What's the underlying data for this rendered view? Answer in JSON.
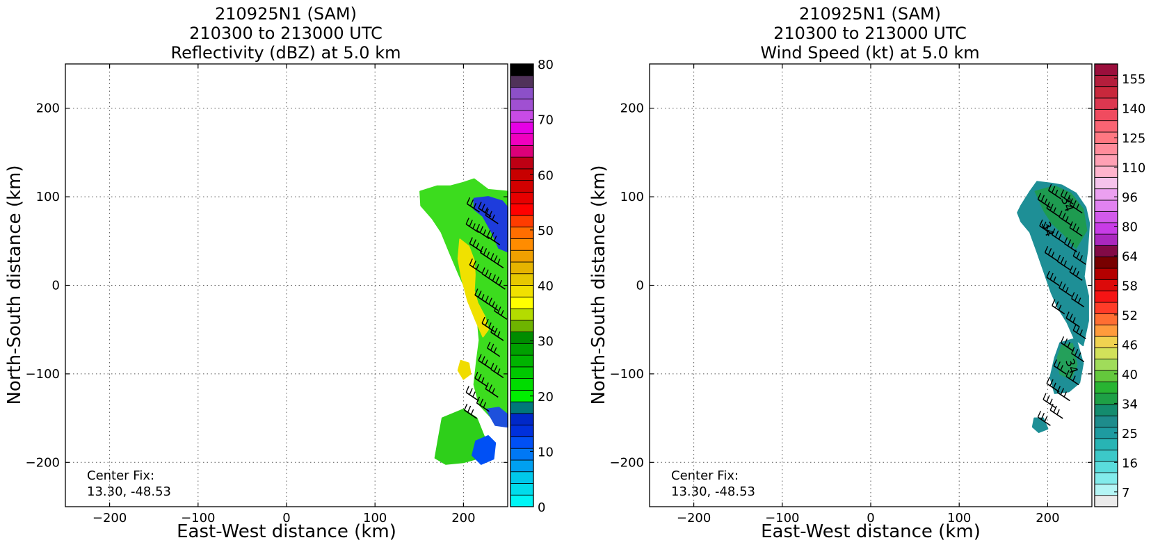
{
  "chart_data": [
    {
      "type": "heatmap",
      "title": [
        "210925N1 (SAM)",
        "210300 to 213000 UTC",
        "Reflectivity (dBZ) at 5.0 km"
      ],
      "xlabel": "East-West distance (km)",
      "ylabel": "North-South distance (km)",
      "xlim": [
        -250,
        250
      ],
      "ylim": [
        -250,
        250
      ],
      "xticks": [
        -200,
        -100,
        0,
        100,
        200
      ],
      "yticks": [
        200,
        100,
        0,
        -100,
        -200
      ],
      "xtick_labels": [
        "−200",
        "−100",
        "0",
        "100",
        "200"
      ],
      "ytick_labels": [
        "200",
        "100",
        "0",
        "−100",
        "−200"
      ],
      "grid": true,
      "annotation": [
        "Center Fix:",
        "13.30, -48.53"
      ],
      "colorbar": {
        "min": 0,
        "max": 80,
        "ticks": [
          0,
          10,
          20,
          30,
          40,
          50,
          60,
          70,
          80
        ],
        "tick_labels": [
          "0",
          "10",
          "20",
          "30",
          "40",
          "50",
          "60",
          "70",
          "80"
        ],
        "colors": [
          "#00f5f5",
          "#00dceb",
          "#00c8eb",
          "#00a0f0",
          "#0078f5",
          "#0050f5",
          "#0030dc",
          "#0028c8",
          "#00787a",
          "#00f000",
          "#00dc00",
          "#00c800",
          "#00b400",
          "#00a000",
          "#008c00",
          "#6eb400",
          "#b4dc00",
          "#ffff00",
          "#f0e100",
          "#e6c800",
          "#e6b400",
          "#f0a000",
          "#ff8c00",
          "#ff6e00",
          "#ff3c00",
          "#ff0000",
          "#e60000",
          "#d20000",
          "#c80000",
          "#be0014",
          "#dc0078",
          "#f000be",
          "#e600e6",
          "#c84be6",
          "#a050d2",
          "#8c50c8",
          "#50325a",
          "#000000"
        ]
      },
      "echo_regions": [
        {
          "label": "green",
          "color": "#3cdc1e",
          "poly": [
            [
              151,
              106
            ],
            [
              170,
              112
            ],
            [
              185,
              112
            ],
            [
              200,
              116
            ],
            [
              212,
              120
            ],
            [
              228,
              108
            ],
            [
              250,
              106
            ],
            [
              250,
              -150
            ],
            [
              232,
              -150
            ],
            [
              218,
              -135
            ],
            [
              212,
              -112
            ],
            [
              215,
              -85
            ],
            [
              218,
              -62
            ],
            [
              215,
              -30
            ],
            [
              205,
              -10
            ],
            [
              195,
              12
            ],
            [
              184,
              38
            ],
            [
              175,
              60
            ],
            [
              165,
              75
            ],
            [
              152,
              90
            ]
          ]
        },
        {
          "label": "green",
          "color": "#2ecf1a",
          "poly": [
            [
              176,
              -150
            ],
            [
              200,
              -140
            ],
            [
              215,
              -150
            ],
            [
              225,
              -175
            ],
            [
              218,
              -195
            ],
            [
              200,
              -200
            ],
            [
              180,
              -202
            ],
            [
              168,
              -195
            ],
            [
              172,
              -172
            ]
          ]
        },
        {
          "label": "yellow",
          "color": "#f0e100",
          "poly": [
            [
              196,
              52
            ],
            [
              206,
              44
            ],
            [
              212,
              28
            ],
            [
              213,
              12
            ],
            [
              212,
              -6
            ],
            [
              216,
              -20
            ],
            [
              224,
              -35
            ],
            [
              228,
              -50
            ],
            [
              222,
              -58
            ],
            [
              214,
              -40
            ],
            [
              205,
              -18
            ],
            [
              198,
              8
            ],
            [
              194,
              30
            ]
          ]
        },
        {
          "label": "yellow",
          "color": "#f0dc00",
          "poly": [
            [
              197,
              -85
            ],
            [
              206,
              -88
            ],
            [
              208,
              -100
            ],
            [
              200,
              -106
            ],
            [
              194,
              -96
            ]
          ]
        },
        {
          "label": "blue",
          "color": "#1e3cdc",
          "poly": [
            [
              212,
              98
            ],
            [
              228,
              100
            ],
            [
              244,
              95
            ],
            [
              250,
              88
            ],
            [
              250,
              38
            ],
            [
              240,
              42
            ],
            [
              232,
              60
            ],
            [
              222,
              78
            ],
            [
              212,
              86
            ]
          ]
        },
        {
          "label": "blue",
          "color": "#0050f5",
          "poly": [
            [
              214,
              -176
            ],
            [
              228,
              -170
            ],
            [
              236,
              -178
            ],
            [
              234,
              -196
            ],
            [
              220,
              -202
            ],
            [
              210,
              -192
            ]
          ]
        },
        {
          "label": "blue",
          "color": "#1e50dc",
          "poly": [
            [
              226,
              -140
            ],
            [
              240,
              -138
            ],
            [
              250,
              -146
            ],
            [
              250,
              -160
            ],
            [
              236,
              -158
            ]
          ]
        }
      ]
    },
    {
      "type": "heatmap",
      "title": [
        "210925N1 (SAM)",
        "210300 to 213000 UTC",
        "Wind Speed (kt) at 5.0 km"
      ],
      "xlabel": "East-West distance (km)",
      "ylabel": "North-South distance (km)",
      "xlim": [
        -250,
        250
      ],
      "ylim": [
        -250,
        250
      ],
      "xticks": [
        -200,
        -100,
        0,
        100,
        200
      ],
      "yticks": [
        200,
        100,
        0,
        -100,
        -200
      ],
      "xtick_labels": [
        "−200",
        "−100",
        "0",
        "100",
        "200"
      ],
      "ytick_labels": [
        "200",
        "100",
        "0",
        "−100",
        "−200"
      ],
      "grid": true,
      "annotation": [
        "Center Fix:",
        "13.30, -48.53"
      ],
      "contour_labels": [
        {
          "text": "34",
          "x": 215,
          "y": 98
        },
        {
          "text": "34",
          "x": 193,
          "y": 70
        },
        {
          "text": "34",
          "x": 220,
          "y": -85
        }
      ],
      "colorbar": {
        "min": 7,
        "max": 160,
        "ticks": [
          7,
          16,
          25,
          34,
          40,
          46,
          52,
          58,
          64,
          80,
          96,
          110,
          125,
          140,
          155
        ],
        "tick_labels": [
          "7",
          "16",
          "25",
          "34",
          "40",
          "46",
          "52",
          "58",
          "64",
          "80",
          "96",
          "110",
          "125",
          "140",
          "155"
        ],
        "colors": [
          "#ebebeb",
          "#b4f5f5",
          "#82ebeb",
          "#5adcdc",
          "#3cc8c8",
          "#28b4b4",
          "#1e9ba0",
          "#1e8c8c",
          "#148c6e",
          "#1ea046",
          "#28b432",
          "#64c83c",
          "#a0dc5a",
          "#d2e15a",
          "#f0d250",
          "#ff9b3c",
          "#ff6e32",
          "#ff3c28",
          "#f51414",
          "#dc0a0a",
          "#b40000",
          "#780000",
          "#820a46",
          "#aa28be",
          "#c83ce6",
          "#d25aeb",
          "#e182f0",
          "#eba0f0",
          "#f5c3eb",
          "#ffb4cd",
          "#ffa0b4",
          "#ff8c9b",
          "#ff7882",
          "#fa6473",
          "#f04b5f",
          "#dc3750",
          "#c8283c",
          "#b41e3c",
          "#9b0f3c"
        ]
      },
      "echo_regions": [
        {
          "label": "teal",
          "color": "#1e8f96",
          "poly": [
            [
              170,
              90
            ],
            [
              180,
              106
            ],
            [
              188,
              117
            ],
            [
              205,
              115
            ],
            [
              216,
              113
            ],
            [
              232,
              104
            ],
            [
              243,
              88
            ],
            [
              247,
              70
            ],
            [
              245,
              40
            ],
            [
              241,
              10
            ],
            [
              246,
              -12
            ],
            [
              246,
              -40
            ],
            [
              240,
              -68
            ],
            [
              230,
              -60
            ],
            [
              222,
              -42
            ],
            [
              212,
              -26
            ],
            [
              204,
              -8
            ],
            [
              197,
              12
            ],
            [
              188,
              38
            ],
            [
              180,
              60
            ],
            [
              170,
              72
            ],
            [
              166,
              82
            ]
          ]
        },
        {
          "label": "green",
          "color": "#1e9b50",
          "poly": [
            [
              186,
              106
            ],
            [
              208,
              112
            ],
            [
              226,
              104
            ],
            [
              240,
              86
            ],
            [
              244,
              62
            ],
            [
              232,
              42
            ],
            [
              218,
              58
            ],
            [
              205,
              70
            ],
            [
              196,
              84
            ]
          ]
        },
        {
          "label": "teal",
          "color": "#1e8f96",
          "poly": [
            [
              214,
              -65
            ],
            [
              232,
              -60
            ],
            [
              240,
              -88
            ],
            [
              236,
              -110
            ],
            [
              224,
              -120
            ],
            [
              208,
              -122
            ],
            [
              203,
              -104
            ],
            [
              208,
              -82
            ]
          ]
        },
        {
          "label": "green",
          "color": "#24a05a",
          "poly": [
            [
              216,
              -68
            ],
            [
              228,
              -66
            ],
            [
              233,
              -90
            ],
            [
              226,
              -106
            ],
            [
              214,
              -100
            ],
            [
              211,
              -82
            ]
          ]
        },
        {
          "label": "teal",
          "color": "#1e8f96",
          "poly": [
            [
              185,
              -150
            ],
            [
              195,
              -150
            ],
            [
              200,
              -162
            ],
            [
              190,
              -166
            ],
            [
              183,
              -160
            ]
          ]
        }
      ]
    }
  ]
}
